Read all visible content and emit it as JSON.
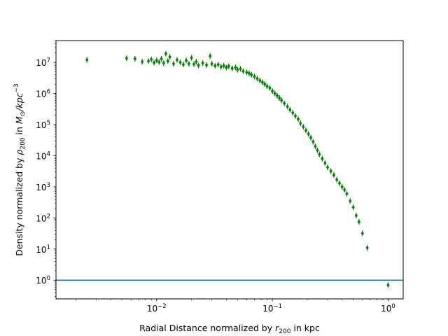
{
  "chart_data": {
    "type": "scatter",
    "title": "",
    "xlabel": {
      "text": "Radial Distance normalized by ",
      "math_base": "r",
      "math_sub": "200",
      "suffix": " in kpc"
    },
    "ylabel": {
      "text": "Density normalized by ",
      "math_base": "ρ",
      "math_sub": "200",
      "mid": " in ",
      "unit_base": "M",
      "unit_sub": "⊙",
      "unit_rest": "/kpc",
      "unit_sup": "−3"
    },
    "x_scale": "log",
    "y_scale": "log",
    "xlim": [
      0.00135,
      1.35
    ],
    "ylim": [
      0.25,
      50000000
    ],
    "x_ticks": [
      {
        "exp": "−2",
        "value": 0.01
      },
      {
        "exp": "−1",
        "value": 0.1
      },
      {
        "exp": "0",
        "value": 1
      }
    ],
    "y_ticks": [
      {
        "exp": "0",
        "value": 1
      },
      {
        "exp": "1",
        "value": 10
      },
      {
        "exp": "2",
        "value": 100
      },
      {
        "exp": "3",
        "value": 1000
      },
      {
        "exp": "4",
        "value": 10000
      },
      {
        "exp": "5",
        "value": 100000
      },
      {
        "exp": "6",
        "value": 1000000
      },
      {
        "exp": "7",
        "value": 10000000
      }
    ],
    "tick_base": "10",
    "hline": {
      "y": 1,
      "color": "#1f77b4"
    },
    "series": [
      {
        "color": "#008000",
        "marker": "diamond-with-errorbar",
        "points": [
          [
            0.0025,
            12000000
          ],
          [
            0.0055,
            13500000
          ],
          [
            0.0065,
            13000000
          ],
          [
            0.0075,
            10500000
          ],
          [
            0.0085,
            11000000
          ],
          [
            0.009,
            12500000
          ],
          [
            0.0095,
            9800000
          ],
          [
            0.01,
            11500000
          ],
          [
            0.0105,
            10200000
          ],
          [
            0.011,
            13000000
          ],
          [
            0.0115,
            9500000
          ],
          [
            0.012,
            19000000
          ],
          [
            0.0125,
            11000000
          ],
          [
            0.013,
            15000000
          ],
          [
            0.014,
            9000000
          ],
          [
            0.015,
            12000000
          ],
          [
            0.016,
            10000000
          ],
          [
            0.017,
            8500000
          ],
          [
            0.018,
            11500000
          ],
          [
            0.019,
            9000000
          ],
          [
            0.02,
            14000000
          ],
          [
            0.021,
            8800000
          ],
          [
            0.022,
            10500000
          ],
          [
            0.023,
            8000000
          ],
          [
            0.025,
            9500000
          ],
          [
            0.027,
            8200000
          ],
          [
            0.029,
            16000000
          ],
          [
            0.03,
            9000000
          ],
          [
            0.032,
            7800000
          ],
          [
            0.034,
            8500000
          ],
          [
            0.036,
            7200000
          ],
          [
            0.038,
            7800000
          ],
          [
            0.04,
            6800000
          ],
          [
            0.042,
            7500000
          ],
          [
            0.045,
            6400000
          ],
          [
            0.048,
            6900000
          ],
          [
            0.05,
            5800000
          ],
          [
            0.053,
            6200000
          ],
          [
            0.056,
            5200000
          ],
          [
            0.06,
            4800000
          ],
          [
            0.063,
            4400000
          ],
          [
            0.066,
            4000000
          ],
          [
            0.07,
            3500000
          ],
          [
            0.074,
            3000000
          ],
          [
            0.078,
            2600000
          ],
          [
            0.082,
            2300000
          ],
          [
            0.086,
            2000000
          ],
          [
            0.09,
            1700000
          ],
          [
            0.095,
            1500000
          ],
          [
            0.1,
            1200000
          ],
          [
            0.105,
            1000000
          ],
          [
            0.11,
            850000
          ],
          [
            0.115,
            720000
          ],
          [
            0.12,
            600000
          ],
          [
            0.127,
            480000
          ],
          [
            0.135,
            380000
          ],
          [
            0.142,
            300000
          ],
          [
            0.15,
            240000
          ],
          [
            0.158,
            190000
          ],
          [
            0.167,
            150000
          ],
          [
            0.175,
            110000
          ],
          [
            0.185,
            85000
          ],
          [
            0.195,
            65000
          ],
          [
            0.205,
            50000
          ],
          [
            0.215,
            38000
          ],
          [
            0.225,
            28000
          ],
          [
            0.235,
            20000
          ],
          [
            0.245,
            15000
          ],
          [
            0.255,
            11000
          ],
          [
            0.27,
            8000
          ],
          [
            0.285,
            5800
          ],
          [
            0.3,
            4200
          ],
          [
            0.32,
            3200
          ],
          [
            0.34,
            2400
          ],
          [
            0.36,
            1700
          ],
          [
            0.38,
            1300
          ],
          [
            0.4,
            1000
          ],
          [
            0.42,
            800
          ],
          [
            0.44,
            600
          ],
          [
            0.47,
            350
          ],
          [
            0.5,
            220
          ],
          [
            0.53,
            120
          ],
          [
            0.56,
            75
          ],
          [
            0.6,
            32
          ],
          [
            0.66,
            11
          ],
          [
            1.0,
            0.7
          ]
        ]
      }
    ]
  }
}
